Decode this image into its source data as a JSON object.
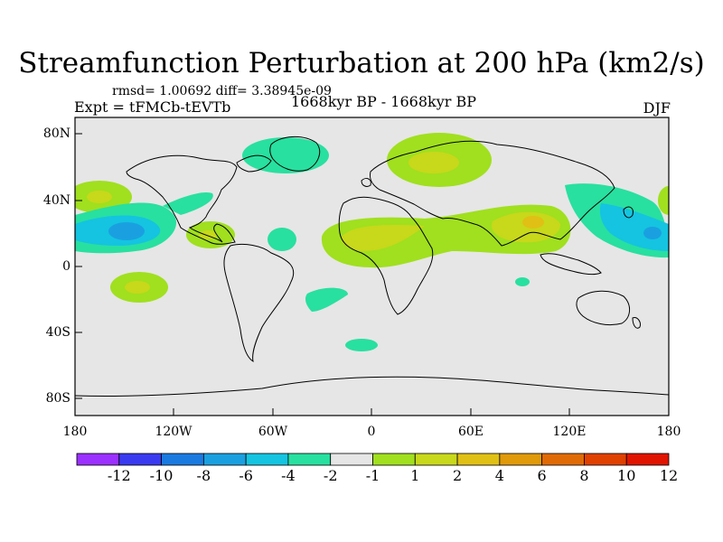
{
  "title": "Streamfunction Perturbation at 200 hPa (km2/s)",
  "stats": "rmsd= 1.00692  diff= 3.38945e-09",
  "experiment": "Expt = tFMCb-tEVTb",
  "period": "1668kyr BP - 1668kyr BP",
  "season": "DJF",
  "y_labels": [
    "80N",
    "40N",
    "0",
    "40S",
    "80S"
  ],
  "x_labels": [
    "180",
    "120W",
    "60W",
    "0",
    "60E",
    "120E",
    "180"
  ],
  "colorbar": {
    "labels": [
      "-12",
      "-10",
      "-8",
      "-6",
      "-4",
      "-2",
      "-1",
      "1",
      "2",
      "4",
      "6",
      "8",
      "10",
      "12"
    ],
    "colors": [
      "#9b30ff",
      "#3a3af0",
      "#1a7ae0",
      "#1aa0e0",
      "#14c4e0",
      "#28e0a0",
      "#e6e6e6",
      "#a0e01e",
      "#c8d81a",
      "#e0c014",
      "#e09a0a",
      "#e06a05",
      "#e04000",
      "#e01400"
    ]
  },
  "legend_colors": {
    "neutral": "#e6e6e6",
    "pos1": "#a0e01e",
    "pos2": "#c8d81a",
    "pos3": "#e0c014",
    "neg1": "#28e0a0",
    "neg2": "#14c4e0",
    "neg3": "#1aa0e0"
  }
}
